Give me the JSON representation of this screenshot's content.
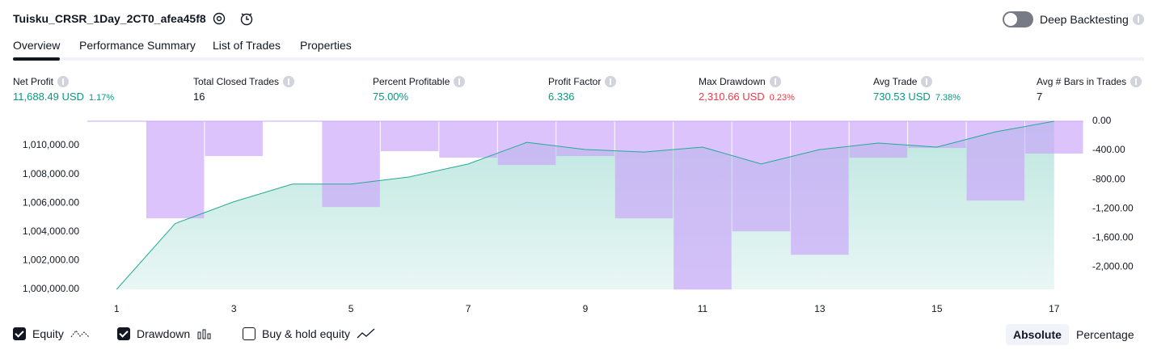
{
  "header": {
    "title": "Tuisku_CRSR_1Day_2CT0_afea45f8",
    "toggle_label": "Deep Backtesting"
  },
  "tabs": [
    "Overview",
    "Performance Summary",
    "List of Trades",
    "Properties"
  ],
  "metrics": [
    {
      "label": "Net Profit",
      "value": "11,688.49 USD",
      "percent": "1.17%"
    },
    {
      "label": "Total Closed Trades",
      "value": "16"
    },
    {
      "label": "Percent Profitable",
      "value": "75.00%"
    },
    {
      "label": "Profit Factor",
      "value": "6.336"
    },
    {
      "label": "Max Drawdown",
      "value": "2,310.66 USD",
      "percent": "0.23%"
    },
    {
      "label": "Avg Trade",
      "value": "730.53 USD",
      "percent": "7.38%"
    },
    {
      "label": "Avg # Bars in Trades",
      "value": "7"
    }
  ],
  "chart_data": {
    "type": "line",
    "x": [
      1,
      2,
      3,
      4,
      5,
      6,
      7,
      8,
      9,
      10,
      11,
      12,
      13,
      14,
      15,
      16,
      17
    ],
    "series": [
      {
        "name": "Equity",
        "color": "#22ab94",
        "values": [
          1000000,
          1004580,
          1006090,
          1007320,
          1007320,
          1007820,
          1008720,
          1010220,
          1009720,
          1009550,
          1009890,
          1008720,
          1009720,
          1010170,
          1009890,
          1010950,
          1011688.49
        ]
      },
      {
        "name": "Drawdown",
        "type": "bar",
        "axis": "y2",
        "color": "#c9a3fa",
        "values": [
          0,
          -1333,
          -478,
          0,
          -1178,
          -411,
          -500,
          -600,
          -478,
          -1333,
          -2310.66,
          -1511,
          -1833,
          -500,
          -367,
          -1089,
          -444
        ]
      }
    ],
    "inactive_series": [
      "Buy & hold equity"
    ],
    "xlim": [
      0.5,
      17.5
    ],
    "xticks": [
      1,
      3,
      5,
      7,
      9,
      11,
      13,
      15,
      17
    ],
    "ylim": [
      1000000,
      1011690
    ],
    "yticks": [
      {
        "value": 1000000,
        "label": "1,000,000.00"
      },
      {
        "value": 1002000,
        "label": "1,002,000.00"
      },
      {
        "value": 1004000,
        "label": "1,004,000.00"
      },
      {
        "value": 1006000,
        "label": "1,006,000.00"
      },
      {
        "value": 1008000,
        "label": "1,008,000.00"
      },
      {
        "value": 1010000,
        "label": "1,010,000.00"
      }
    ],
    "y2lim": [
      -2330,
      0
    ],
    "y2ticks": [
      {
        "value": 0,
        "label": "0.00"
      },
      {
        "value": -400,
        "label": "-400.00"
      },
      {
        "value": -800,
        "label": "-800.00"
      },
      {
        "value": -1200,
        "label": "-1,200.00"
      },
      {
        "value": -1600,
        "label": "-1,600.00"
      },
      {
        "value": -2000,
        "label": "-2,000.00"
      }
    ]
  },
  "scale_buttons": [
    "Absolute",
    "Percentage"
  ]
}
